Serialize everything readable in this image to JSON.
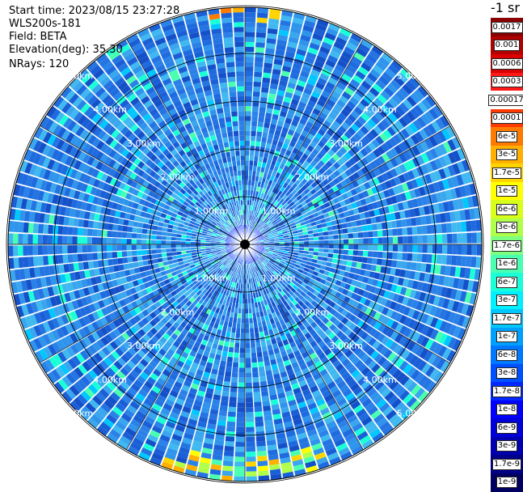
{
  "header": {
    "start_time": "Start time: 2023/08/15 23:27:28",
    "instrument": "WLS200s-181",
    "field": "Field: BETA",
    "elevation": "Elevation(deg): 35.30",
    "nrays": "NRays: 120"
  },
  "range_labels": [
    "1.00km",
    "2.00km",
    "3.00km",
    "4.00km",
    "5.00km"
  ],
  "colorbar": {
    "unit": "-1 sr",
    "entries": [
      {
        "label": "0.0017",
        "color": "#8a0000"
      },
      {
        "label": "0.001",
        "color": "#b00000"
      },
      {
        "label": "0.0006",
        "color": "#d80000"
      },
      {
        "label": "0.0003",
        "color": "#ff1a1a"
      },
      {
        "label": "0.00017",
        "color": "#ffffff"
      },
      {
        "label": "0.0001",
        "color": "#ff3a00"
      },
      {
        "label": "6e-5",
        "color": "#ff7a00"
      },
      {
        "label": "3e-5",
        "color": "#ffb000"
      },
      {
        "label": "1.7e-5",
        "color": "#ffd400"
      },
      {
        "label": "1e-5",
        "color": "#ffff00"
      },
      {
        "label": "6e-6",
        "color": "#d8ff1a"
      },
      {
        "label": "3e-6",
        "color": "#b0ff4a"
      },
      {
        "label": "1.7e-6",
        "color": "#7dff80"
      },
      {
        "label": "1e-6",
        "color": "#4affb0"
      },
      {
        "label": "6e-7",
        "color": "#1affd8"
      },
      {
        "label": "3e-7",
        "color": "#00f0ff"
      },
      {
        "label": "1.7e-7",
        "color": "#00c8ff"
      },
      {
        "label": "1e-7",
        "color": "#00a0ff"
      },
      {
        "label": "6e-8",
        "color": "#0078ff"
      },
      {
        "label": "3e-8",
        "color": "#0050ff"
      },
      {
        "label": "1.7e-8",
        "color": "#0028ff"
      },
      {
        "label": "1e-8",
        "color": "#0000ff"
      },
      {
        "label": "6e-9",
        "color": "#0000d8"
      },
      {
        "label": "3e-9",
        "color": "#0000b0"
      },
      {
        "label": "1.7e-9",
        "color": "#000088"
      },
      {
        "label": "1e-9",
        "color": "#000060"
      }
    ]
  }
}
